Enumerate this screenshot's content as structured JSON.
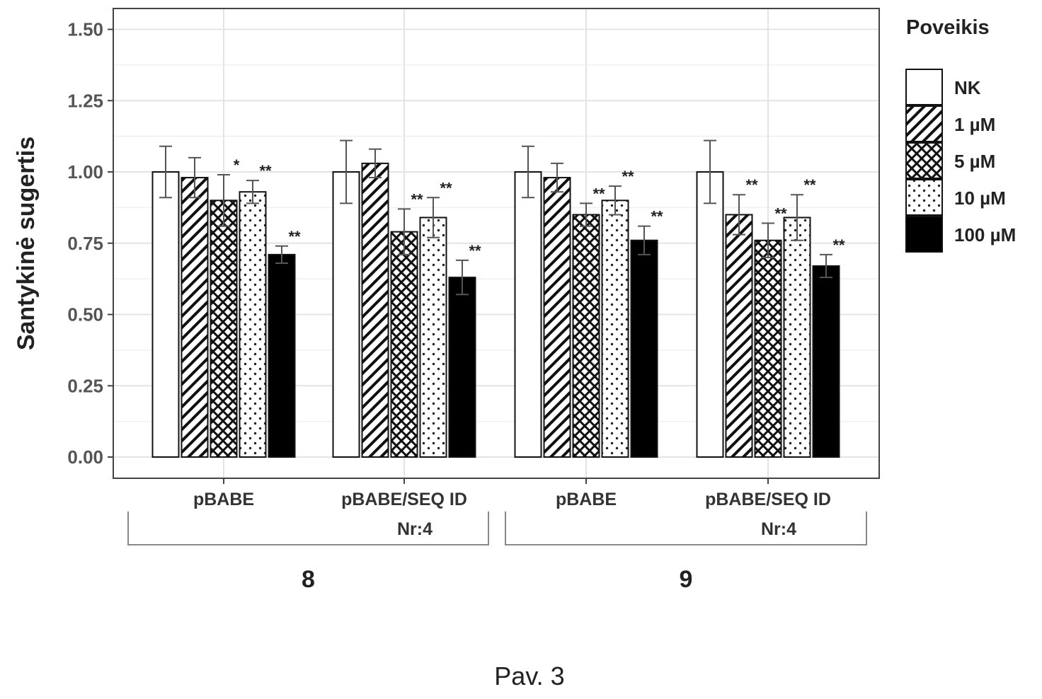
{
  "chart_data": {
    "type": "bar",
    "ylabel": "Santykinė sugertis",
    "xlabel": "",
    "ylim": [
      0,
      1.58
    ],
    "yticks": [
      "0.00",
      "0.25",
      "0.50",
      "0.75",
      "1.00",
      "1.25",
      "1.50"
    ],
    "grid": true,
    "legend": {
      "title": "Poveikis",
      "position": "right",
      "entries": [
        "NK",
        "1 µM",
        "5 µM",
        "10 µM",
        "100 µM"
      ],
      "patterns": [
        "none",
        "diagonal-hatch",
        "crosshatch",
        "dots",
        "solid-black"
      ]
    },
    "super_groups": [
      {
        "label": "8",
        "groups": [
          "pBABE",
          "pBABE/SEQ ID Nr:4"
        ]
      },
      {
        "label": "9",
        "groups": [
          "pBABE",
          "pBABE/SEQ ID Nr:4"
        ]
      }
    ],
    "groups": [
      {
        "label_lines": [
          "pBABE"
        ],
        "values": [
          1.0,
          0.98,
          0.9,
          0.93,
          0.71
        ],
        "errors": [
          0.09,
          0.07,
          0.09,
          0.04,
          0.03
        ],
        "significance": [
          "",
          "",
          "*",
          "**",
          "**"
        ]
      },
      {
        "label_lines": [
          "pBABE/SEQ ID",
          "Nr:4"
        ],
        "values": [
          1.0,
          1.03,
          0.79,
          0.84,
          0.63
        ],
        "errors": [
          0.11,
          0.05,
          0.08,
          0.07,
          0.06
        ],
        "significance": [
          "",
          "",
          "**",
          "**",
          "**"
        ]
      },
      {
        "label_lines": [
          "pBABE"
        ],
        "values": [
          1.0,
          0.98,
          0.85,
          0.9,
          0.76
        ],
        "errors": [
          0.09,
          0.05,
          0.04,
          0.05,
          0.05
        ],
        "significance": [
          "",
          "",
          "**",
          "**",
          "**"
        ]
      },
      {
        "label_lines": [
          "pBABE/SEQ ID",
          "Nr:4"
        ],
        "values": [
          1.0,
          0.85,
          0.76,
          0.84,
          0.67
        ],
        "errors": [
          0.11,
          0.07,
          0.06,
          0.08,
          0.04
        ],
        "significance": [
          "",
          "**",
          "**",
          "**",
          "**"
        ]
      }
    ]
  },
  "caption": "Pav. 3"
}
